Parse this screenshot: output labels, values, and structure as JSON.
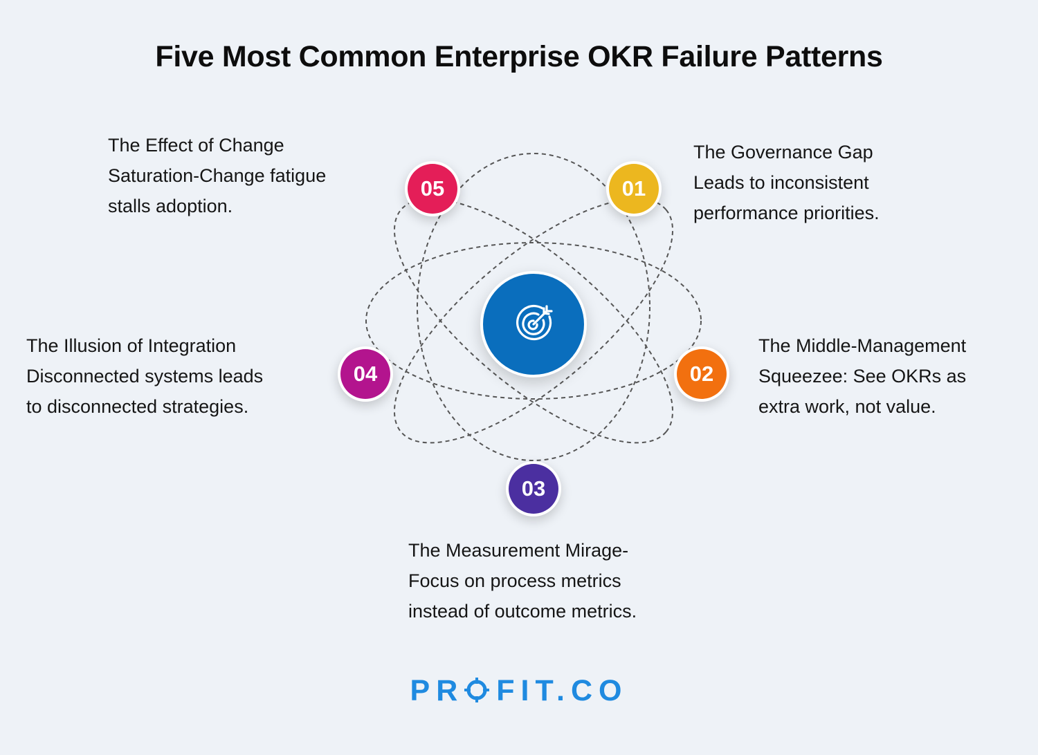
{
  "title": "Five Most Common Enterprise OKR Failure Patterns",
  "center_icon": "target-dart-icon",
  "items": [
    {
      "number": "01",
      "color": "#ecb71f",
      "lines": [
        "The Governance Gap",
        "Leads to inconsistent",
        "performance priorities."
      ]
    },
    {
      "number": "02",
      "color": "#f2700f",
      "lines": [
        "The Middle-Management",
        "Squeezee: See OKRs as",
        "extra work, not value."
      ]
    },
    {
      "number": "03",
      "color": "#4b2fa0",
      "lines": [
        "The Measurement Mirage-",
        "Focus on process metrics",
        "instead of outcome metrics."
      ]
    },
    {
      "number": "04",
      "color": "#b3148e",
      "lines": [
        "The Illusion of Integration",
        "Disconnected systems leads",
        "to disconnected strategies."
      ]
    },
    {
      "number": "05",
      "color": "#e41e58",
      "lines": [
        "The Effect of Change",
        "Saturation-Change fatigue",
        "stalls adoption."
      ]
    }
  ],
  "logo": {
    "before": "PR",
    "after": "FIT.CO",
    "color": "#1f8ae0"
  }
}
